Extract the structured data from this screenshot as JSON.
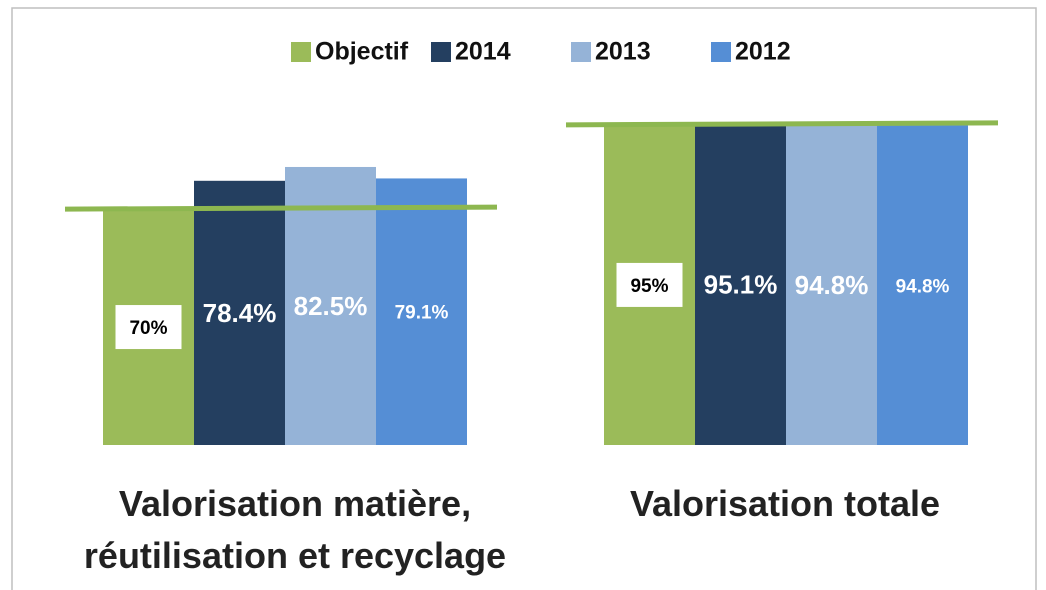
{
  "chart_data": {
    "type": "bar",
    "categories": [
      "Valorisation matière, réutilisation et recyclage",
      "Valorisation totale"
    ],
    "series": [
      {
        "name": "Objectif",
        "color": "#9bbb59",
        "values": [
          70,
          95
        ],
        "value_labels": [
          "70%",
          "95%"
        ]
      },
      {
        "name": "2014",
        "color": "#243f60",
        "values": [
          78.4,
          95.1
        ],
        "value_labels": [
          "78.4%",
          "95.1%"
        ]
      },
      {
        "name": "2013",
        "color": "#95b3d7",
        "values": [
          82.5,
          94.8
        ],
        "value_labels": [
          "82.5%",
          "94.8%"
        ]
      },
      {
        "name": "2012",
        "color": "#558ed5",
        "values": [
          79.1,
          94.8
        ],
        "value_labels": [
          "79.1%",
          "94.8%"
        ]
      }
    ],
    "ylim": [
      0,
      100
    ],
    "legend": "top"
  }
}
